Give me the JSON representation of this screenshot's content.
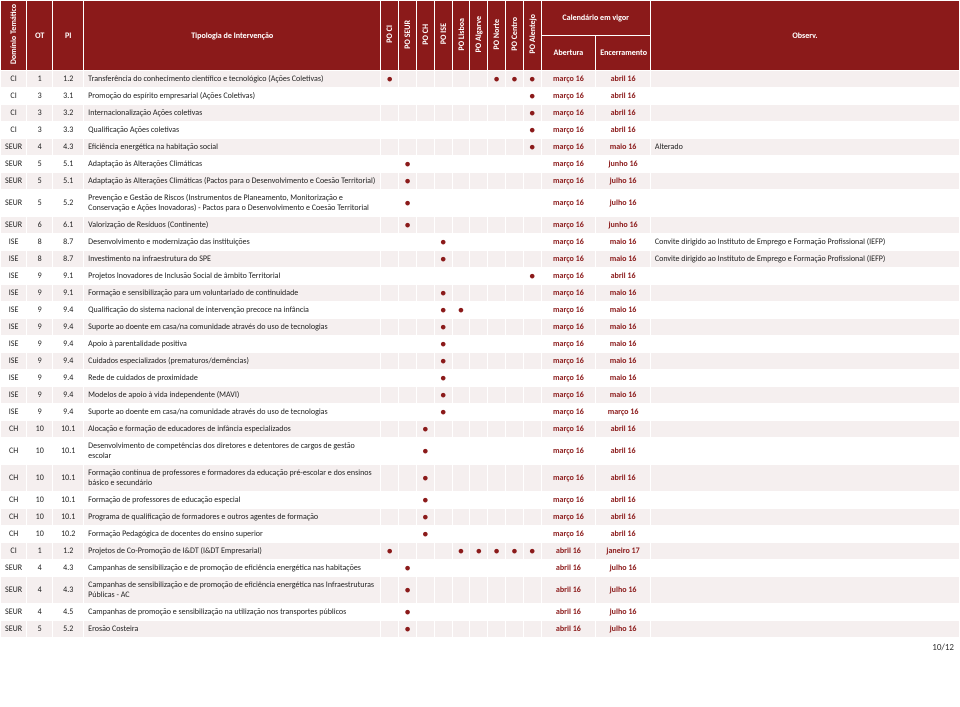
{
  "headers": {
    "dominio": "Domínio Temático",
    "ot": "OT",
    "pi": "PI",
    "tipologia": "Tipologia de Intervenção",
    "po": [
      "PO CI",
      "PO SEUR",
      "PO CH",
      "PO ISE",
      "PO Lisboa",
      "PO Algarve",
      "PO Norte",
      "PO Centro",
      "PO Alentejo"
    ],
    "calendario": "Calendário em vigor",
    "abertura": "Abertura",
    "encerramento": "Encerramento",
    "observ": "Observ."
  },
  "footer": "10/12",
  "rows": [
    {
      "dt": "CI",
      "ot": "1",
      "pi": "1.2",
      "tip": "Transferência do conhecimento científico e tecnológico (Ações Coletivas)",
      "po": [
        1,
        0,
        0,
        0,
        0,
        0,
        1,
        1,
        1
      ],
      "ab": "março 16",
      "en": "abril 16",
      "obs": ""
    },
    {
      "dt": "CI",
      "ot": "3",
      "pi": "3.1",
      "tip": "Promoção do espírito empresarial (Ações Coletivas)",
      "po": [
        0,
        0,
        0,
        0,
        0,
        0,
        0,
        0,
        1
      ],
      "ab": "março 16",
      "en": "abril 16",
      "obs": ""
    },
    {
      "dt": "CI",
      "ot": "3",
      "pi": "3.2",
      "tip": "Internacionalização Ações coletivas",
      "po": [
        0,
        0,
        0,
        0,
        0,
        0,
        0,
        0,
        1
      ],
      "ab": "março 16",
      "en": "abril 16",
      "obs": ""
    },
    {
      "dt": "CI",
      "ot": "3",
      "pi": "3.3",
      "tip": "Qualificação Ações coletivas",
      "po": [
        0,
        0,
        0,
        0,
        0,
        0,
        0,
        0,
        1
      ],
      "ab": "março 16",
      "en": "abril 16",
      "obs": ""
    },
    {
      "dt": "SEUR",
      "ot": "4",
      "pi": "4.3",
      "tip": "Eficiência energética na habitação social",
      "po": [
        0,
        0,
        0,
        0,
        0,
        0,
        0,
        0,
        1
      ],
      "ab": "março 16",
      "en": "maio 16",
      "obs": "Alterado"
    },
    {
      "dt": "SEUR",
      "ot": "5",
      "pi": "5.1",
      "tip": "Adaptação às Alterações Climáticas",
      "po": [
        0,
        1,
        0,
        0,
        0,
        0,
        0,
        0,
        0
      ],
      "ab": "março 16",
      "en": "junho 16",
      "obs": ""
    },
    {
      "dt": "SEUR",
      "ot": "5",
      "pi": "5.1",
      "tip": "Adaptação às Alterações Climáticas (Pactos para o Desenvolvimento e Coesão Territorial)",
      "po": [
        0,
        1,
        0,
        0,
        0,
        0,
        0,
        0,
        0
      ],
      "ab": "março 16",
      "en": "julho 16",
      "obs": ""
    },
    {
      "dt": "SEUR",
      "ot": "5",
      "pi": "5.2",
      "tip": "Prevenção e Gestão de Riscos (Instrumentos de Planeamento, Monitorização e Conservação e Ações Inovadoras) - Pactos para o Desenvolvimento e Coesão Territorial",
      "po": [
        0,
        1,
        0,
        0,
        0,
        0,
        0,
        0,
        0
      ],
      "ab": "março 16",
      "en": "julho 16",
      "obs": ""
    },
    {
      "dt": "SEUR",
      "ot": "6",
      "pi": "6.1",
      "tip": "Valorização de Resíduos (Continente)",
      "po": [
        0,
        1,
        0,
        0,
        0,
        0,
        0,
        0,
        0
      ],
      "ab": "março 16",
      "en": "junho 16",
      "obs": ""
    },
    {
      "dt": "ISE",
      "ot": "8",
      "pi": "8.7",
      "tip": "Desenvolvimento e modernização das instituições",
      "po": [
        0,
        0,
        0,
        1,
        0,
        0,
        0,
        0,
        0
      ],
      "ab": "março 16",
      "en": "maio 16",
      "obs": "Convite dirigido ao Instituto de Emprego e Formação Profissional (IEFP)"
    },
    {
      "dt": "ISE",
      "ot": "8",
      "pi": "8.7",
      "tip": "Investimento na infraestrutura do SPE",
      "po": [
        0,
        0,
        0,
        1,
        0,
        0,
        0,
        0,
        0
      ],
      "ab": "março 16",
      "en": "maio 16",
      "obs": "Convite dirigido ao Instituto de Emprego e Formação Profissional (IEFP)"
    },
    {
      "dt": "ISE",
      "ot": "9",
      "pi": "9.1",
      "tip": "Projetos Inovadores de Inclusão Social de âmbito Territorial",
      "po": [
        0,
        0,
        0,
        0,
        0,
        0,
        0,
        0,
        1
      ],
      "ab": "março 16",
      "en": "abril 16",
      "obs": ""
    },
    {
      "dt": "ISE",
      "ot": "9",
      "pi": "9.1",
      "tip": "Formação e sensibilização para um voluntariado de continuidade",
      "po": [
        0,
        0,
        0,
        1,
        0,
        0,
        0,
        0,
        0
      ],
      "ab": "março 16",
      "en": "maio 16",
      "obs": ""
    },
    {
      "dt": "ISE",
      "ot": "9",
      "pi": "9.4",
      "tip": "Qualificação do sistema nacional de intervenção precoce na infância",
      "po": [
        0,
        0,
        0,
        1,
        1,
        0,
        0,
        0,
        0
      ],
      "ab": "março 16",
      "en": "maio 16",
      "obs": ""
    },
    {
      "dt": "ISE",
      "ot": "9",
      "pi": "9.4",
      "tip": "Suporte ao doente em casa/na comunidade através do uso de tecnologias",
      "po": [
        0,
        0,
        0,
        1,
        0,
        0,
        0,
        0,
        0
      ],
      "ab": "março 16",
      "en": "maio 16",
      "obs": ""
    },
    {
      "dt": "ISE",
      "ot": "9",
      "pi": "9.4",
      "tip": "Apoio à parentalidade positiva",
      "po": [
        0,
        0,
        0,
        1,
        0,
        0,
        0,
        0,
        0
      ],
      "ab": "março 16",
      "en": "maio 16",
      "obs": ""
    },
    {
      "dt": "ISE",
      "ot": "9",
      "pi": "9.4",
      "tip": "Cuidados especializados (prematuros/demências)",
      "po": [
        0,
        0,
        0,
        1,
        0,
        0,
        0,
        0,
        0
      ],
      "ab": "março 16",
      "en": "maio 16",
      "obs": ""
    },
    {
      "dt": "ISE",
      "ot": "9",
      "pi": "9.4",
      "tip": "Rede de cuidados de proximidade",
      "po": [
        0,
        0,
        0,
        1,
        0,
        0,
        0,
        0,
        0
      ],
      "ab": "março 16",
      "en": "maio 16",
      "obs": ""
    },
    {
      "dt": "ISE",
      "ot": "9",
      "pi": "9.4",
      "tip": "Modelos de apoio à vida independente (MAVI)",
      "po": [
        0,
        0,
        0,
        1,
        0,
        0,
        0,
        0,
        0
      ],
      "ab": "março 16",
      "en": "maio 16",
      "obs": ""
    },
    {
      "dt": "ISE",
      "ot": "9",
      "pi": "9.4",
      "tip": "Suporte ao doente em casa/na comunidade através do uso de tecnologias",
      "po": [
        0,
        0,
        0,
        1,
        0,
        0,
        0,
        0,
        0
      ],
      "ab": "março 16",
      "en": "março 16",
      "obs": ""
    },
    {
      "dt": "CH",
      "ot": "10",
      "pi": "10.1",
      "tip": "Alocação e formação de educadores de infância especializados",
      "po": [
        0,
        0,
        1,
        0,
        0,
        0,
        0,
        0,
        0
      ],
      "ab": "março 16",
      "en": "abril 16",
      "obs": ""
    },
    {
      "dt": "CH",
      "ot": "10",
      "pi": "10.1",
      "tip": "Desenvolvimento de competências dos diretores e detentores de cargos de gestão escolar",
      "po": [
        0,
        0,
        1,
        0,
        0,
        0,
        0,
        0,
        0
      ],
      "ab": "março 16",
      "en": "abril 16",
      "obs": ""
    },
    {
      "dt": "CH",
      "ot": "10",
      "pi": "10.1",
      "tip": "Formação contínua de professores e formadores da educação pré-escolar e dos ensinos básico e secundário",
      "po": [
        0,
        0,
        1,
        0,
        0,
        0,
        0,
        0,
        0
      ],
      "ab": "março 16",
      "en": "abril 16",
      "obs": ""
    },
    {
      "dt": "CH",
      "ot": "10",
      "pi": "10.1",
      "tip": "Formação de professores de educação especial",
      "po": [
        0,
        0,
        1,
        0,
        0,
        0,
        0,
        0,
        0
      ],
      "ab": "março 16",
      "en": "abril 16",
      "obs": ""
    },
    {
      "dt": "CH",
      "ot": "10",
      "pi": "10.1",
      "tip": "Programa de qualificação de formadores e outros agentes de formação",
      "po": [
        0,
        0,
        1,
        0,
        0,
        0,
        0,
        0,
        0
      ],
      "ab": "março 16",
      "en": "abril 16",
      "obs": ""
    },
    {
      "dt": "CH",
      "ot": "10",
      "pi": "10.2",
      "tip": "Formação Pedagógica de docentes do ensino superior",
      "po": [
        0,
        0,
        1,
        0,
        0,
        0,
        0,
        0,
        0
      ],
      "ab": "março 16",
      "en": "abril 16",
      "obs": ""
    },
    {
      "dt": "CI",
      "ot": "1",
      "pi": "1.2",
      "tip": "Projetos de Co-Promoção de I&DT (I&DT Empresarial)",
      "po": [
        1,
        0,
        0,
        0,
        1,
        1,
        1,
        1,
        1
      ],
      "ab": "abril 16",
      "en": "janeiro 17",
      "obs": ""
    },
    {
      "dt": "SEUR",
      "ot": "4",
      "pi": "4.3",
      "tip": "Campanhas de sensibilização e de promoção de eficiência energética nas habitações",
      "po": [
        0,
        1,
        0,
        0,
        0,
        0,
        0,
        0,
        0
      ],
      "ab": "abril 16",
      "en": "julho 16",
      "obs": ""
    },
    {
      "dt": "SEUR",
      "ot": "4",
      "pi": "4.3",
      "tip": "Campanhas de sensibilização e de promoção de eficiência energética nas Infraestruturas Públicas - AC",
      "po": [
        0,
        1,
        0,
        0,
        0,
        0,
        0,
        0,
        0
      ],
      "ab": "abril 16",
      "en": "julho 16",
      "obs": ""
    },
    {
      "dt": "SEUR",
      "ot": "4",
      "pi": "4.5",
      "tip": "Campanhas de promoção e sensibilização na utilização nos transportes públicos",
      "po": [
        0,
        1,
        0,
        0,
        0,
        0,
        0,
        0,
        0
      ],
      "ab": "abril 16",
      "en": "julho 16",
      "obs": ""
    },
    {
      "dt": "SEUR",
      "ot": "5",
      "pi": "5.2",
      "tip": "Erosão Costeira",
      "po": [
        0,
        1,
        0,
        0,
        0,
        0,
        0,
        0,
        0
      ],
      "ab": "abril 16",
      "en": "julho 16",
      "obs": ""
    }
  ]
}
